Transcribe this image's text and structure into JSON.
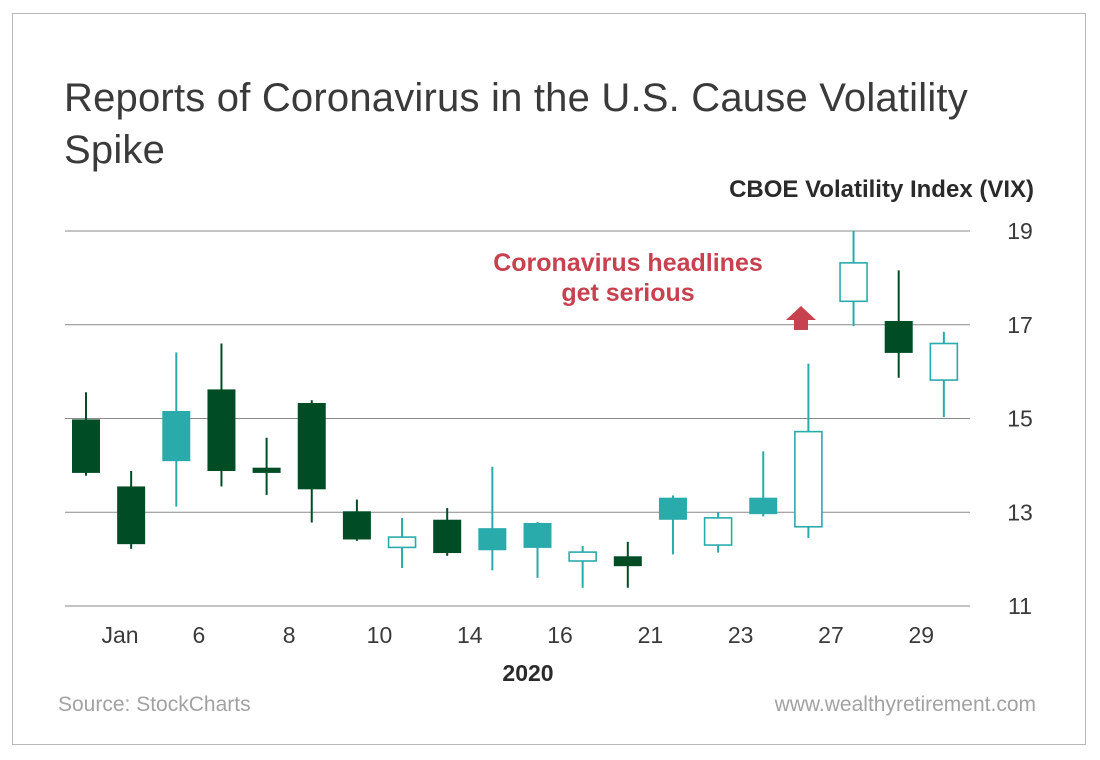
{
  "title": "Reports of Coronavirus in the U.S. Cause Volatility Spike",
  "source": "Source: StockCharts",
  "website": "www.wealthyretirement.com",
  "annotation": {
    "line1": "Coronavirus headlines",
    "line2": "get serious",
    "color": "#c8414f"
  },
  "colors": {
    "down": "#004d25",
    "up_filled": "#2aabab",
    "up_hollow": "#2aabab",
    "grid": "#8a8a8a"
  },
  "chart_data": {
    "type": "candlestick",
    "title": "Reports of Coronavirus in the U.S. Cause Volatility Spike",
    "ylabel": "CBOE Volatility Index (VIX)",
    "xlabel": "2020",
    "ylim": [
      11,
      19
    ],
    "yticks": [
      11,
      13,
      15,
      17,
      19
    ],
    "y_axis_side": "right",
    "x_tick_labels": [
      "Jan",
      "6",
      "8",
      "10",
      "14",
      "16",
      "21",
      "23",
      "27",
      "29"
    ],
    "candles": [
      {
        "open": 14.97,
        "high": 15.56,
        "low": 13.78,
        "close": 13.85,
        "style": "down"
      },
      {
        "open": 13.54,
        "high": 13.88,
        "low": 12.22,
        "close": 12.33,
        "style": "down"
      },
      {
        "open": 14.1,
        "high": 16.41,
        "low": 13.12,
        "close": 15.15,
        "style": "up_filled"
      },
      {
        "open": 15.61,
        "high": 16.6,
        "low": 13.55,
        "close": 13.89,
        "style": "down"
      },
      {
        "open": 13.94,
        "high": 14.59,
        "low": 13.37,
        "close": 13.85,
        "style": "down"
      },
      {
        "open": 15.32,
        "high": 15.39,
        "low": 12.78,
        "close": 13.5,
        "style": "down"
      },
      {
        "open": 13.01,
        "high": 13.27,
        "low": 12.39,
        "close": 12.43,
        "style": "down"
      },
      {
        "open": 12.25,
        "high": 12.88,
        "low": 11.81,
        "close": 12.47,
        "style": "up_hollow"
      },
      {
        "open": 12.83,
        "high": 13.09,
        "low": 12.07,
        "close": 12.14,
        "style": "down"
      },
      {
        "open": 12.2,
        "high": 13.97,
        "low": 11.76,
        "close": 12.65,
        "style": "up_filled"
      },
      {
        "open": 12.25,
        "high": 12.79,
        "low": 11.6,
        "close": 12.76,
        "style": "up_filled"
      },
      {
        "open": 11.96,
        "high": 12.28,
        "low": 11.39,
        "close": 12.15,
        "style": "up_hollow"
      },
      {
        "open": 12.05,
        "high": 12.37,
        "low": 11.39,
        "close": 11.86,
        "style": "down"
      },
      {
        "open": 12.85,
        "high": 13.36,
        "low": 12.1,
        "close": 13.3,
        "style": "up_filled"
      },
      {
        "open": 12.3,
        "high": 13.0,
        "low": 12.14,
        "close": 12.88,
        "style": "up_hollow"
      },
      {
        "open": 12.97,
        "high": 14.3,
        "low": 12.91,
        "close": 13.3,
        "style": "up_filled"
      },
      {
        "open": 12.69,
        "high": 16.17,
        "low": 12.45,
        "close": 14.72,
        "style": "up_hollow"
      },
      {
        "open": 17.5,
        "high": 19.0,
        "low": 16.97,
        "close": 18.32,
        "style": "up_hollow"
      },
      {
        "open": 17.07,
        "high": 18.16,
        "low": 15.87,
        "close": 16.41,
        "style": "down"
      },
      {
        "open": 15.82,
        "high": 16.85,
        "low": 15.03,
        "close": 16.6,
        "style": "up_hollow"
      }
    ]
  }
}
